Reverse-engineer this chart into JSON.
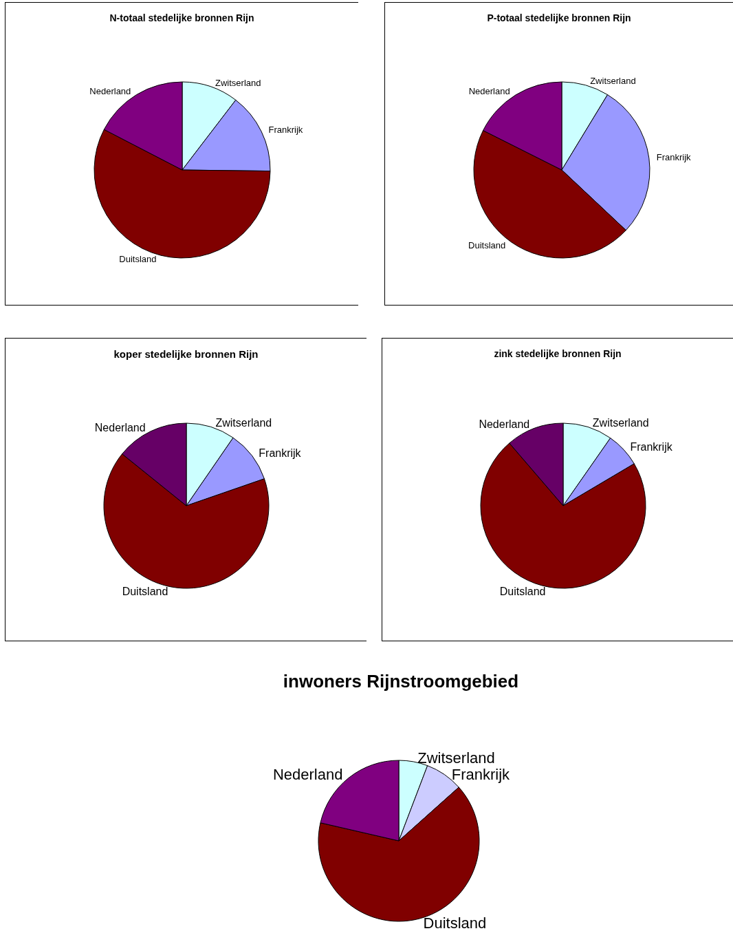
{
  "chart_data": [
    {
      "type": "pie",
      "title": "N-totaal stedelijke bronnen Rijn",
      "categories": [
        "Zwitserland",
        "Frankrijk",
        "Duitsland",
        "Nederland"
      ],
      "values": [
        10.4,
        14.8,
        57.4,
        17.4
      ],
      "colors": [
        "#ccffff",
        "#9999ff",
        "#800000",
        "#800080"
      ],
      "legend": false
    },
    {
      "type": "pie",
      "title": "P-totaal stedelijke bronnen Rijn",
      "categories": [
        "Zwitserland",
        "Frankrijk",
        "Duitsland",
        "Nederland"
      ],
      "values": [
        8.7,
        28.3,
        45.4,
        17.6
      ],
      "colors": [
        "#ccffff",
        "#9999ff",
        "#800000",
        "#800080"
      ],
      "legend": false
    },
    {
      "type": "pie",
      "title": "koper stedelijke bronnen Rijn",
      "categories": [
        "Zwitserland",
        "Frankrijk",
        "Duitsland",
        "Nederland"
      ],
      "values": [
        9.6,
        10.1,
        66.1,
        14.2
      ],
      "colors": [
        "#ccffff",
        "#9999ff",
        "#800000",
        "#660066"
      ],
      "legend": false
    },
    {
      "type": "pie",
      "title": "zink stedelijke bronnen Rijn",
      "categories": [
        "Zwitserland",
        "Frankrijk",
        "Duitsland",
        "Nederland"
      ],
      "values": [
        9.7,
        6.8,
        72.2,
        11.3
      ],
      "colors": [
        "#ccffff",
        "#9999ff",
        "#800000",
        "#660066"
      ],
      "legend": false
    },
    {
      "type": "pie",
      "title": "inwoners Rijnstroomgebied",
      "categories": [
        "Zwitserland",
        "Frankrijk",
        "Duitsland",
        "Nederland"
      ],
      "values": [
        5.8,
        7.6,
        65.2,
        21.4
      ],
      "colors": [
        "#ccffff",
        "#ccccff",
        "#800000",
        "#800080"
      ],
      "legend": false
    }
  ]
}
